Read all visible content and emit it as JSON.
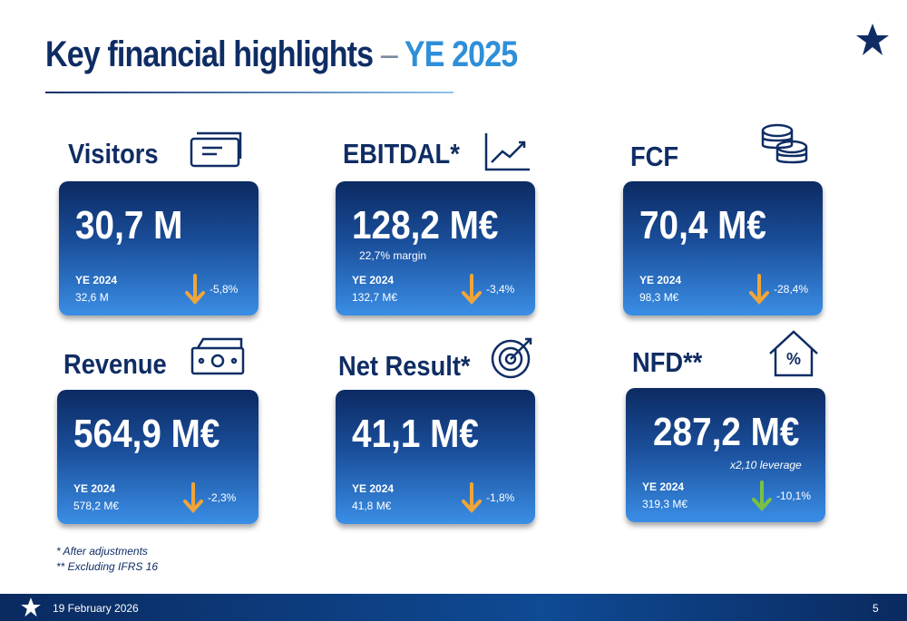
{
  "header": {
    "title": "Key financial highlights",
    "separator": "–",
    "highlight": "YE 2025"
  },
  "cards": [
    {
      "label": "Visitors",
      "value": "30,7 M",
      "prior_label": "YE 2024",
      "prior_value": "32,6 M",
      "change": "-5,8%",
      "arrow_color": "#f0a53a"
    },
    {
      "label": "EBITDAL*",
      "value": "128,2 M€",
      "note": "22,7% margin",
      "prior_label": "YE 2024",
      "prior_value": "132,7 M€",
      "change": "-3,4%",
      "arrow_color": "#f0a53a"
    },
    {
      "label": "FCF",
      "value": "70,4 M€",
      "prior_label": "YE 2024",
      "prior_value": "98,3 M€",
      "change": "-28,4%",
      "arrow_color": "#f0a53a"
    },
    {
      "label": "Revenue",
      "value": "564,9 M€",
      "prior_label": "YE 2024",
      "prior_value": "578,2 M€",
      "change": "-2,3%",
      "arrow_color": "#f0a53a"
    },
    {
      "label": "Net Result*",
      "value": "41,1 M€",
      "prior_label": "YE 2024",
      "prior_value": "41,8 M€",
      "change": "-1,8%",
      "arrow_color": "#f0a53a"
    },
    {
      "label": "NFD**",
      "value": "287,2 M€",
      "note": "x2,10 leverage",
      "prior_label": "YE 2024",
      "prior_value": "319,3 M€",
      "change": "-10,1%",
      "arrow_color": "#7ac143"
    }
  ],
  "footnotes": [
    "* After adjustments",
    "** Excluding IFRS 16"
  ],
  "footer": {
    "date": "19 February 2026",
    "page": "5"
  }
}
